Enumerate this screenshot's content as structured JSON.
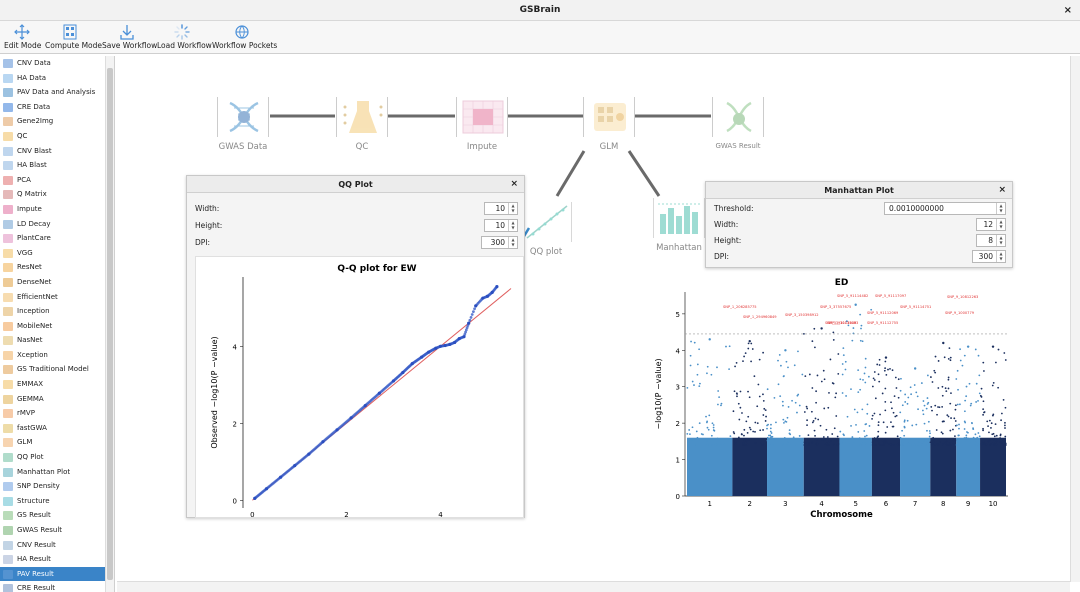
{
  "window": {
    "title": "GSBrain",
    "close": "×"
  },
  "toolbar": {
    "edit_mode": "Edit Mode",
    "compute_mode": "Compute Mode",
    "save_workflow": "Save Workflow",
    "load_workflow": "Load Workflow",
    "workflow_pockets": "Workflow Pockets"
  },
  "sidebar": {
    "selected_index": 35,
    "items": [
      {
        "label": "CNV Data",
        "color": "#5b8fd6"
      },
      {
        "label": "HA Data",
        "color": "#7fb7e8"
      },
      {
        "label": "PAV Data and Analysis",
        "color": "#4a90c8"
      },
      {
        "label": "CRE Data",
        "color": "#3b7dd8"
      },
      {
        "label": "Gene2Img",
        "color": "#e0a060"
      },
      {
        "label": "QC",
        "color": "#f0c060"
      },
      {
        "label": "CNV Blast",
        "color": "#8ab4e0"
      },
      {
        "label": "HA Blast",
        "color": "#8ab4e0"
      },
      {
        "label": "PCA",
        "color": "#e07070"
      },
      {
        "label": "Q Matrix",
        "color": "#d08080"
      },
      {
        "label": "Impute",
        "color": "#e070a0"
      },
      {
        "label": "LD Decay",
        "color": "#70a0d0"
      },
      {
        "label": "PlantCare",
        "color": "#e090c0"
      },
      {
        "label": "VGG",
        "color": "#f0c060"
      },
      {
        "label": "ResNet",
        "color": "#f0b050"
      },
      {
        "label": "DenseNet",
        "color": "#e0a040"
      },
      {
        "label": "EfficientNet",
        "color": "#f0c070"
      },
      {
        "label": "Inception",
        "color": "#e0b060"
      },
      {
        "label": "MobileNet",
        "color": "#f0a050"
      },
      {
        "label": "NasNet",
        "color": "#e0c070"
      },
      {
        "label": "Xception",
        "color": "#f0b060"
      },
      {
        "label": "GS Traditional Model",
        "color": "#e0a050"
      },
      {
        "label": "EMMAX",
        "color": "#f0c060"
      },
      {
        "label": "GEMMA",
        "color": "#e0b050"
      },
      {
        "label": "rMVP",
        "color": "#f0a060"
      },
      {
        "label": "fastGWA",
        "color": "#e0c060"
      },
      {
        "label": "GLM",
        "color": "#f0b070"
      },
      {
        "label": "QQ Plot",
        "color": "#70c0a0"
      },
      {
        "label": "Manhattan Plot",
        "color": "#60b0c0"
      },
      {
        "label": "SNP Density",
        "color": "#70a0e0"
      },
      {
        "label": "Structure",
        "color": "#60c0d0"
      },
      {
        "label": "GS Result",
        "color": "#80c080"
      },
      {
        "label": "GWAS Result",
        "color": "#70b070"
      },
      {
        "label": "CNV Result",
        "color": "#90b0d0"
      },
      {
        "label": "HA Result",
        "color": "#a0b0d0"
      },
      {
        "label": "PAV Result",
        "color": "#6aa0d8"
      },
      {
        "label": "CRE Result",
        "color": "#7090c0"
      }
    ]
  },
  "workflow": {
    "nodes": {
      "gwas_data": "GWAS Data",
      "qc": "QC",
      "impute": "Impute",
      "glm": "GLM",
      "gwas_result": "GWAS Result",
      "qq_plot": "QQ plot",
      "manhattan": "Manhattan"
    }
  },
  "qq_dialog": {
    "title": "QQ Plot",
    "close": "×",
    "width_label": "Width:",
    "width_value": "10",
    "height_label": "Height:",
    "height_value": "10",
    "dpi_label": "DPI:",
    "dpi_value": "300"
  },
  "manhattan_dialog": {
    "title": "Manhattan Plot",
    "close": "×",
    "threshold_label": "Threshold:",
    "threshold_value": "0.0010000000",
    "width_label": "Width:",
    "width_value": "12",
    "height_label": "Height:",
    "height_value": "8",
    "dpi_label": "DPI:",
    "dpi_value": "300"
  },
  "chart_data": [
    {
      "type": "scatter",
      "title": "Q-Q plot for EW",
      "xlabel": "",
      "ylabel": "Observed −log10(P −value)",
      "xlim": [
        -0.2,
        5.5
      ],
      "ylim": [
        -0.2,
        5.8
      ],
      "xticks": [
        "0",
        "2",
        "4"
      ],
      "yticks": [
        "0",
        "2",
        "4"
      ],
      "reference_line": [
        [
          0,
          0
        ],
        [
          5.5,
          5.5
        ]
      ],
      "points": [
        [
          0.05,
          0.05
        ],
        [
          0.3,
          0.3
        ],
        [
          0.6,
          0.6
        ],
        [
          0.9,
          0.9
        ],
        [
          1.2,
          1.2
        ],
        [
          1.5,
          1.52
        ],
        [
          1.8,
          1.83
        ],
        [
          2.1,
          2.14
        ],
        [
          2.4,
          2.46
        ],
        [
          2.7,
          2.78
        ],
        [
          3.0,
          3.1
        ],
        [
          3.2,
          3.32
        ],
        [
          3.4,
          3.55
        ],
        [
          3.6,
          3.72
        ],
        [
          3.75,
          3.85
        ],
        [
          3.9,
          3.95
        ],
        [
          4.0,
          4.0
        ],
        [
          4.1,
          4.02
        ],
        [
          4.2,
          4.05
        ],
        [
          4.3,
          4.1
        ],
        [
          4.4,
          4.2
        ],
        [
          4.5,
          4.25
        ],
        [
          4.6,
          4.6
        ],
        [
          4.75,
          5.05
        ],
        [
          4.9,
          5.25
        ],
        [
          5.0,
          5.3
        ],
        [
          5.1,
          5.4
        ],
        [
          5.2,
          5.55
        ]
      ]
    },
    {
      "type": "scatter",
      "title": "ED",
      "xlabel": "Chromosome",
      "ylabel": "−log10(P −value)",
      "ylim": [
        0,
        5.6
      ],
      "yticks": [
        "0",
        "1",
        "2",
        "3",
        "4",
        "5"
      ],
      "threshold": 4.45,
      "categories": [
        "1",
        "2",
        "3",
        "4",
        "5",
        "6",
        "7",
        "8",
        "9",
        "10"
      ],
      "colors": [
        "#4a90c8",
        "#1b2f5e"
      ],
      "peaks": [
        {
          "chromosome": "1",
          "max": 4.3
        },
        {
          "chromosome": "2",
          "max": 4.25
        },
        {
          "chromosome": "3",
          "max": 4.0
        },
        {
          "chromosome": "4",
          "max": 4.6
        },
        {
          "chromosome": "5",
          "max": 5.25
        },
        {
          "chromosome": "6",
          "max": 3.8
        },
        {
          "chromosome": "7",
          "max": 3.5
        },
        {
          "chromosome": "8",
          "max": 4.2
        },
        {
          "chromosome": "9",
          "max": 4.1
        },
        {
          "chromosome": "10",
          "max": 4.1
        }
      ],
      "annotations": [
        "SNP_1_206285775",
        "SNP_1_294960849",
        "SNP_3_150398912",
        "SNP_3_37557675",
        "SNP_3_30111083",
        "SNP_5_91114482",
        "SNP_5_91117097",
        "SNP_5_91112069",
        "SNP_5_91112755",
        "SNP_5_91114751",
        "SNP_9_10812263",
        "SNP_9_1000779",
        "SNP_5_91113649"
      ]
    }
  ]
}
